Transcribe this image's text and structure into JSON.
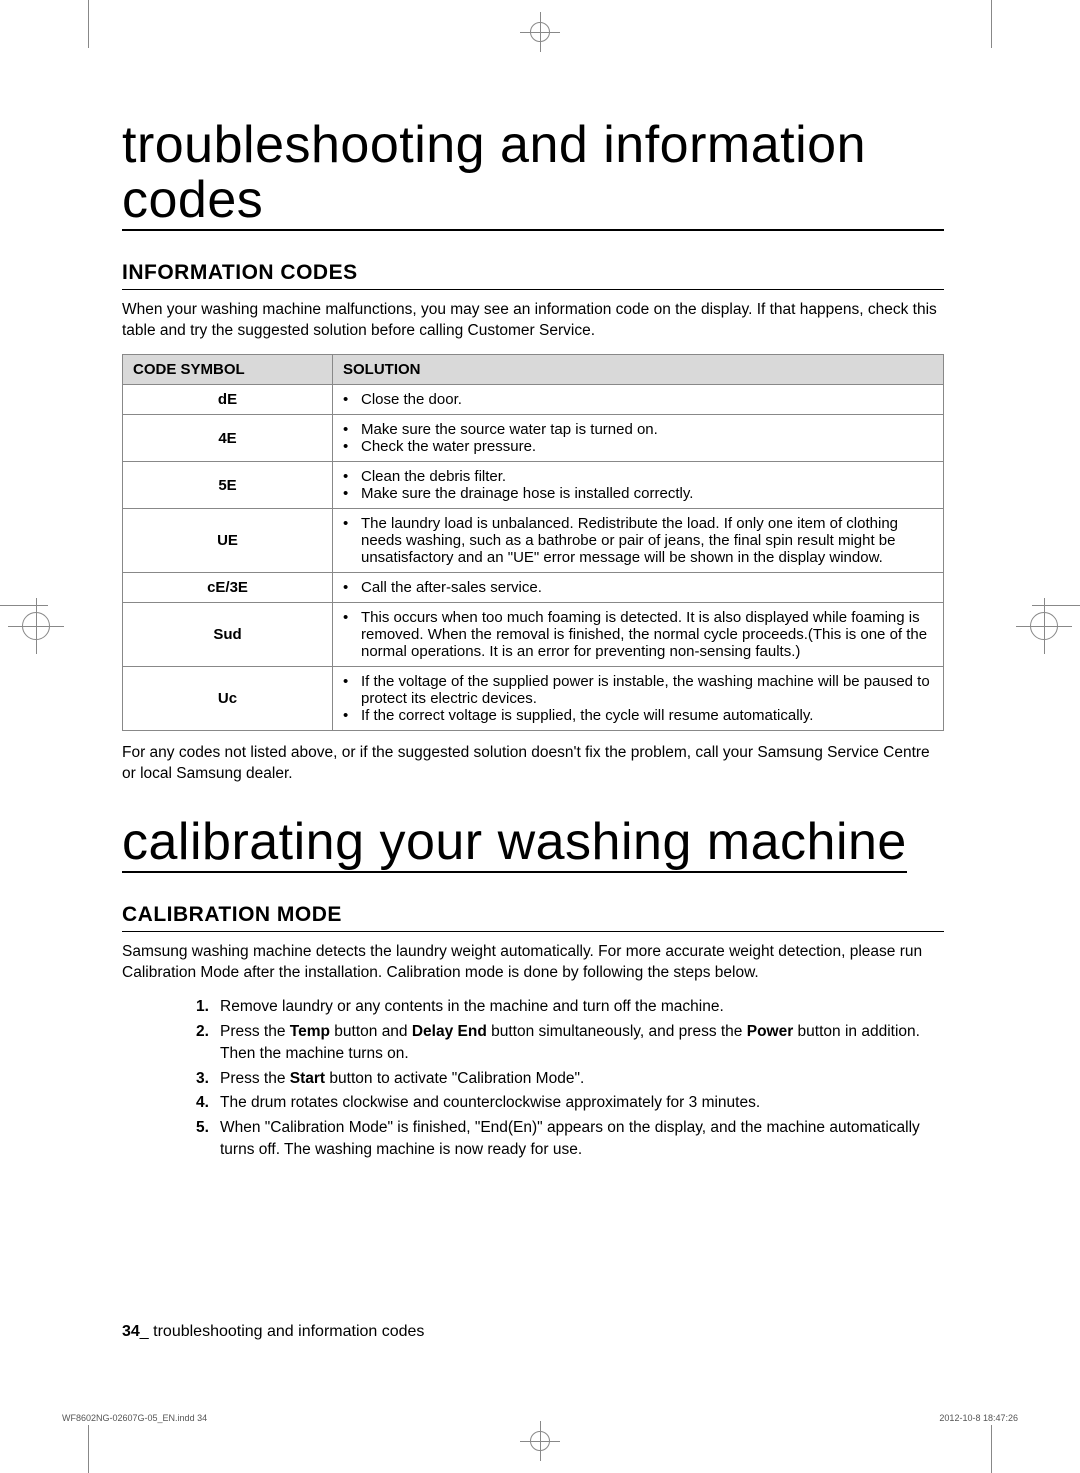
{
  "title1": "troubleshooting and information codes",
  "section1": "INFORMATION CODES",
  "intro1": "When your washing machine malfunctions, you may see an information code on the display. If that happens, check this table and try the suggested solution before calling Customer Service.",
  "table": {
    "head_code": "CODE SYMBOL",
    "head_sol": "SOLUTION",
    "rows": [
      {
        "code": "dE",
        "lines": [
          "Close the door."
        ]
      },
      {
        "code": "4E",
        "lines": [
          "Make sure the source water tap is turned on.",
          "Check the water pressure."
        ]
      },
      {
        "code": "5E",
        "lines": [
          "Clean the debris filter.",
          "Make sure the drainage hose is installed correctly."
        ]
      },
      {
        "code": "UE",
        "lines": [
          "The laundry load is unbalanced. Redistribute the load. If only one item of clothing needs washing, such as a bathrobe or pair of jeans, the final spin result might be unsatisfactory and an \"UE\" error message will be shown in the display window."
        ]
      },
      {
        "code": "cE/3E",
        "lines": [
          "Call the after-sales service."
        ]
      },
      {
        "code": "Sud",
        "lines": [
          "This occurs when too much foaming is detected. It is also displayed while foaming is removed. When the removal is finished, the normal cycle proceeds.(This is one of the normal operations. It is an error for preventing non-sensing faults.)"
        ]
      },
      {
        "code": "Uc",
        "lines": [
          "If the voltage of the supplied power is instable, the washing machine will be paused to protect its electric devices.",
          "If the correct voltage is supplied, the cycle will resume automatically."
        ]
      }
    ]
  },
  "outro1": "For any codes not listed above, or if the suggested solution doesn't fix the problem, call your Samsung Service Centre or local Samsung dealer.",
  "title2": "calibrating your washing machine",
  "section2": "CALIBRATION MODE",
  "intro2": "Samsung washing machine detects the laundry weight automatically. For more accurate weight detection, please run Calibration Mode after the installation. Calibration mode is done by following the steps below.",
  "steps": [
    "Remove laundry or any contents in the machine and turn off the machine.",
    "Press the <b>Temp</b> button and <b>Delay End</b> button simultaneously, and press the <b>Power</b> button in addition. Then the machine turns on.",
    "Press the <b>Start</b> button to activate \"Calibration Mode\".",
    "The drum rotates clockwise and counterclockwise approximately for 3 minutes.",
    "When \"Calibration Mode\" is finished, \"End(En)\" appears on the display, and the machine automatically turns off. The washing machine is now ready for use."
  ],
  "footer_page": "34",
  "footer_text": "_ troubleshooting and information codes",
  "imprint_left": "WF8602NG-02607G-05_EN.indd   34",
  "imprint_right": "2012-10-8   18:47:26",
  "bullet_glyph": "•"
}
